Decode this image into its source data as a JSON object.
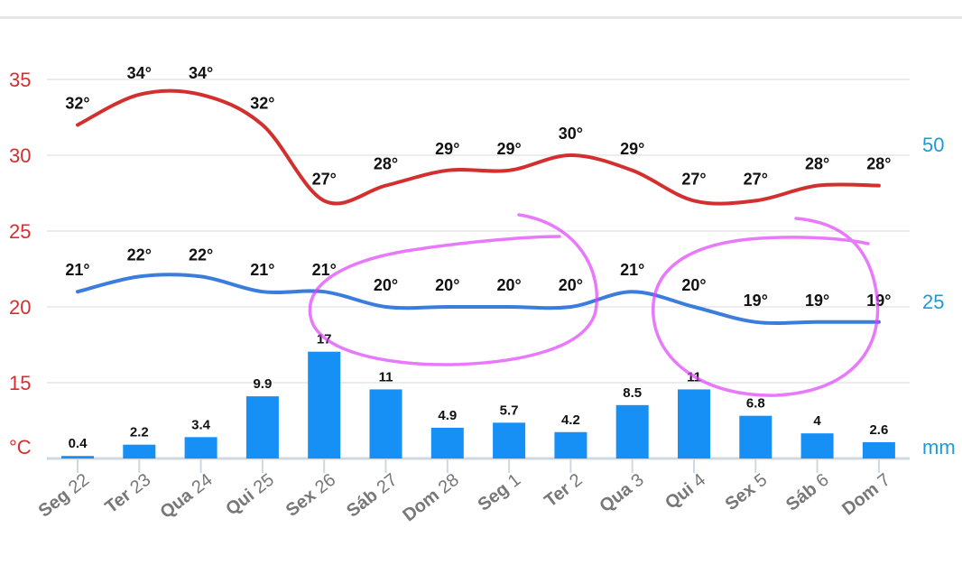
{
  "chart_data": {
    "type": "line",
    "categories": [
      {
        "day": "Seg",
        "date": "22"
      },
      {
        "day": "Ter",
        "date": "23"
      },
      {
        "day": "Qua",
        "date": "24"
      },
      {
        "day": "Qui",
        "date": "25"
      },
      {
        "day": "Sex",
        "date": "26"
      },
      {
        "day": "Sáb",
        "date": "27"
      },
      {
        "day": "Dom",
        "date": "28"
      },
      {
        "day": "Seg",
        "date": "1"
      },
      {
        "day": "Ter",
        "date": "2"
      },
      {
        "day": "Qua",
        "date": "3"
      },
      {
        "day": "Qui",
        "date": "4"
      },
      {
        "day": "Sex",
        "date": "5"
      },
      {
        "day": "Sáb",
        "date": "6"
      },
      {
        "day": "Dom",
        "date": "7"
      }
    ],
    "series": [
      {
        "kind": "line",
        "axis": "left",
        "color": "#d32f2f",
        "values": [
          32,
          34,
          34,
          32,
          27,
          28,
          29,
          29,
          30,
          29,
          27,
          27,
          28,
          28
        ]
      },
      {
        "kind": "line",
        "axis": "left",
        "color": "#3b7ddd",
        "values": [
          21,
          22,
          22,
          21,
          21,
          20,
          20,
          20,
          20,
          21,
          20,
          19,
          19,
          19
        ]
      },
      {
        "kind": "bar",
        "axis": "right",
        "color": "#1690f5",
        "values": [
          0.4,
          2.2,
          3.4,
          9.9,
          17,
          11,
          4.9,
          5.7,
          4.2,
          8.5,
          11,
          6.8,
          4,
          2.6
        ]
      }
    ],
    "degree_suffix": "°",
    "left_axis": {
      "unit": "°C",
      "ticks": [
        "15",
        "20",
        "25",
        "30",
        "35"
      ],
      "range": [
        10,
        35
      ],
      "color": "#d32f2f"
    },
    "right_axis": {
      "unit": "mm",
      "ticks": [
        "25",
        "50"
      ],
      "range": [
        0,
        50
      ],
      "color": "#1e9ad6"
    },
    "grid": true,
    "annotations": [
      {
        "kind": "freehand-circle",
        "color": "#e040fb"
      },
      {
        "kind": "freehand-circle",
        "color": "#e040fb"
      }
    ]
  }
}
